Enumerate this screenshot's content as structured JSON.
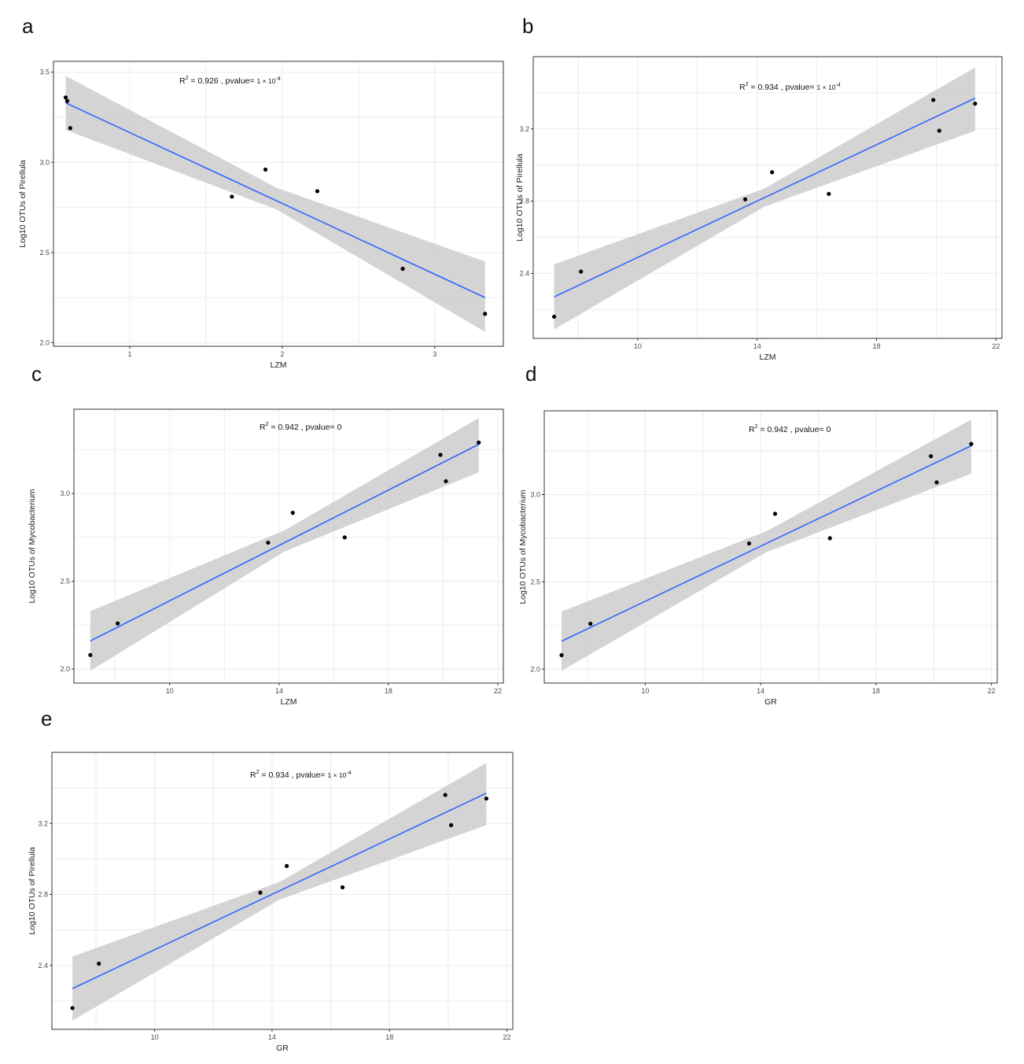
{
  "panels": [
    {
      "letter": "a"
    },
    {
      "letter": "b"
    },
    {
      "letter": "c"
    },
    {
      "letter": "d"
    },
    {
      "letter": "e"
    }
  ],
  "colors": {
    "line": "#3366FF",
    "band": "#cccccc",
    "point": "#000000",
    "grid": "#ebebeb",
    "frame": "#333333"
  },
  "chart_data": [
    {
      "type": "scatter",
      "panel": "a",
      "xlabel": "LZM",
      "ylabel": "Log10 OTUs of  Pirellula",
      "xlim": [
        0.5,
        3.45
      ],
      "ylim": [
        1.98,
        3.56
      ],
      "xticks": [
        1,
        2,
        3
      ],
      "yticks": [
        2.0,
        2.5,
        3.0,
        3.5
      ],
      "x": [
        0.58,
        0.59,
        0.61,
        1.67,
        1.89,
        2.23,
        2.79,
        3.33
      ],
      "y": [
        3.36,
        3.34,
        3.19,
        2.81,
        2.96,
        2.84,
        2.41,
        2.16
      ],
      "fit": {
        "x": [
          0.58,
          3.33
        ],
        "y": [
          3.33,
          2.25
        ]
      },
      "band": {
        "x": [
          0.58,
          1.96,
          3.33
        ],
        "lower": [
          3.18,
          2.74,
          2.06
        ],
        "upper": [
          3.48,
          2.86,
          2.45
        ]
      },
      "annotation": {
        "prefix": "R",
        "sup": "2",
        "text": "= 0.926  , pvalue= ",
        "pval": "1 × 10",
        "pval_exp": "-4"
      }
    },
    {
      "type": "scatter",
      "panel": "b",
      "xlabel": "LZM",
      "ylabel": "Log10 OTUs of  Pirellula",
      "xlim": [
        6.5,
        22.2
      ],
      "ylim": [
        2.04,
        3.6
      ],
      "xticks": [
        10,
        14,
        18,
        22
      ],
      "yticks": [
        2.4,
        2.8,
        3.2
      ],
      "x": [
        7.2,
        8.1,
        13.6,
        14.5,
        16.4,
        19.9,
        20.1,
        21.3
      ],
      "y": [
        2.16,
        2.41,
        2.81,
        2.96,
        2.84,
        3.36,
        3.19,
        3.34
      ],
      "fit": {
        "x": [
          7.2,
          21.3
        ],
        "y": [
          2.27,
          3.37
        ]
      },
      "band": {
        "x": [
          7.2,
          14.25,
          21.3
        ],
        "lower": [
          2.09,
          2.77,
          3.19
        ],
        "upper": [
          2.45,
          2.87,
          3.54
        ]
      },
      "annotation": {
        "prefix": "R",
        "sup": "2",
        "text": "= 0.934  , pvalue= ",
        "pval": "1 × 10",
        "pval_exp": "-4"
      }
    },
    {
      "type": "scatter",
      "panel": "c",
      "xlabel": "LZM",
      "ylabel": "Log10 OTUs of  Mycobacterium",
      "xlim": [
        6.5,
        22.2
      ],
      "ylim": [
        1.92,
        3.48
      ],
      "xticks": [
        10,
        14,
        18,
        22
      ],
      "yticks": [
        2.0,
        2.5,
        3.0
      ],
      "x": [
        7.1,
        8.1,
        13.6,
        14.5,
        16.4,
        19.9,
        20.1,
        21.3
      ],
      "y": [
        2.08,
        2.26,
        2.72,
        2.89,
        2.75,
        3.22,
        3.07,
        3.29
      ],
      "fit": {
        "x": [
          7.1,
          21.3
        ],
        "y": [
          2.16,
          3.28
        ]
      },
      "band": {
        "x": [
          7.1,
          14.2,
          21.3
        ],
        "lower": [
          1.99,
          2.67,
          3.12
        ],
        "upper": [
          2.33,
          2.79,
          3.43
        ]
      },
      "annotation": {
        "prefix": "R",
        "sup": "2",
        "text": "= 0.942  , pvalue= 0",
        "pval": "",
        "pval_exp": ""
      }
    },
    {
      "type": "scatter",
      "panel": "d",
      "xlabel": "GR",
      "ylabel": "Log10 OTUs of  Mycobacterium",
      "xlim": [
        6.5,
        22.2
      ],
      "ylim": [
        1.92,
        3.48
      ],
      "xticks": [
        10,
        14,
        18,
        22
      ],
      "yticks": [
        2.0,
        2.5,
        3.0
      ],
      "x": [
        7.1,
        8.1,
        13.6,
        14.5,
        16.4,
        19.9,
        20.1,
        21.3
      ],
      "y": [
        2.08,
        2.26,
        2.72,
        2.89,
        2.75,
        3.22,
        3.07,
        3.29
      ],
      "fit": {
        "x": [
          7.1,
          21.3
        ],
        "y": [
          2.16,
          3.28
        ]
      },
      "band": {
        "x": [
          7.1,
          14.2,
          21.3
        ],
        "lower": [
          1.99,
          2.67,
          3.12
        ],
        "upper": [
          2.33,
          2.79,
          3.43
        ]
      },
      "annotation": {
        "prefix": "R",
        "sup": "2",
        "text": "= 0.942  , pvalue= 0",
        "pval": "",
        "pval_exp": ""
      }
    },
    {
      "type": "scatter",
      "panel": "e",
      "xlabel": "GR",
      "ylabel": "Log10 OTUs of  Pirellula",
      "xlim": [
        6.5,
        22.2
      ],
      "ylim": [
        2.04,
        3.6
      ],
      "xticks": [
        10,
        14,
        18,
        22
      ],
      "yticks": [
        2.4,
        2.8,
        3.2
      ],
      "x": [
        7.2,
        8.1,
        13.6,
        14.5,
        16.4,
        19.9,
        20.1,
        21.3
      ],
      "y": [
        2.16,
        2.41,
        2.81,
        2.96,
        2.84,
        3.36,
        3.19,
        3.34
      ],
      "fit": {
        "x": [
          7.2,
          21.3
        ],
        "y": [
          2.27,
          3.37
        ]
      },
      "band": {
        "x": [
          7.2,
          14.25,
          21.3
        ],
        "lower": [
          2.09,
          2.77,
          3.19
        ],
        "upper": [
          2.45,
          2.87,
          3.54
        ]
      },
      "annotation": {
        "prefix": "R",
        "sup": "2",
        "text": "= 0.934  , pvalue= ",
        "pval": "1 × 10",
        "pval_exp": "-4"
      }
    }
  ]
}
